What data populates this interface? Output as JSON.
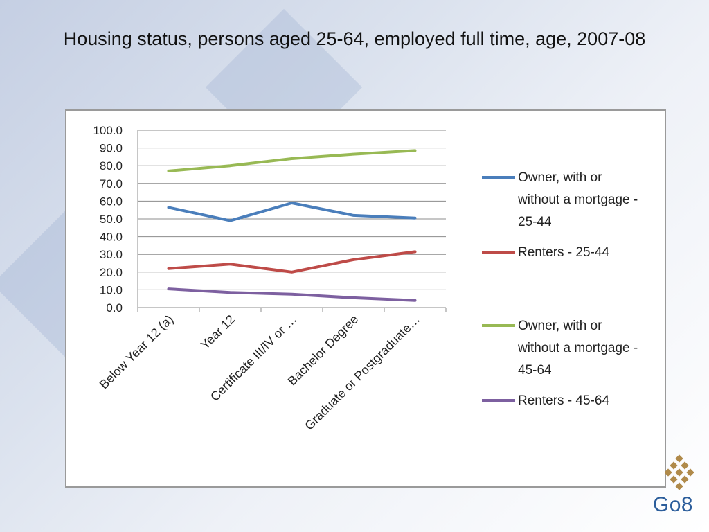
{
  "title": "Housing status, persons aged 25-64, employed full time, age, 2007-08",
  "logo": {
    "text": "Go8",
    "icon": "diamond-grid-logo-icon",
    "color": "#b08a4a"
  },
  "chart_data": {
    "type": "line",
    "title": "Housing status, persons aged 25-64, employed full time, age, 2007-08",
    "categories": [
      "Below Year 12 (a)",
      "Year 12",
      "Certificate III/IV or …",
      "Bachelor Degree",
      "Graduate or Postgraduate…"
    ],
    "ylim": [
      0,
      100
    ],
    "yticks": [
      "100.0",
      "90.0",
      "80.0",
      "70.0",
      "60.0",
      "50.0",
      "40.0",
      "30.0",
      "20.0",
      "10.0",
      "0.0"
    ],
    "grid": true,
    "legend_position": "right",
    "series": [
      {
        "name": "Owner, with or without a mortgage - 25-44",
        "legend_lines": [
          "Owner, with or",
          "without a mortgage -",
          "25-44"
        ],
        "color": "#4a7ebb",
        "values": [
          56.5,
          49.0,
          59.0,
          52.0,
          50.5
        ]
      },
      {
        "name": "Renters  - 25-44",
        "legend_lines": [
          "Renters  - 25-44"
        ],
        "color": "#be4b48",
        "values": [
          22.0,
          24.5,
          20.0,
          27.0,
          31.5
        ]
      },
      {
        "name": "Owner, with or without a mortgage - 45-64",
        "legend_lines": [
          "Owner, with or",
          "without a mortgage -",
          "45-64"
        ],
        "color": "#98b954",
        "values": [
          77.0,
          80.0,
          84.0,
          86.5,
          88.5
        ]
      },
      {
        "name": "Renters  - 45-64",
        "legend_lines": [
          "Renters  - 45-64"
        ],
        "color": "#7d60a0",
        "values": [
          10.5,
          8.5,
          7.5,
          5.5,
          4.0
        ]
      }
    ]
  }
}
